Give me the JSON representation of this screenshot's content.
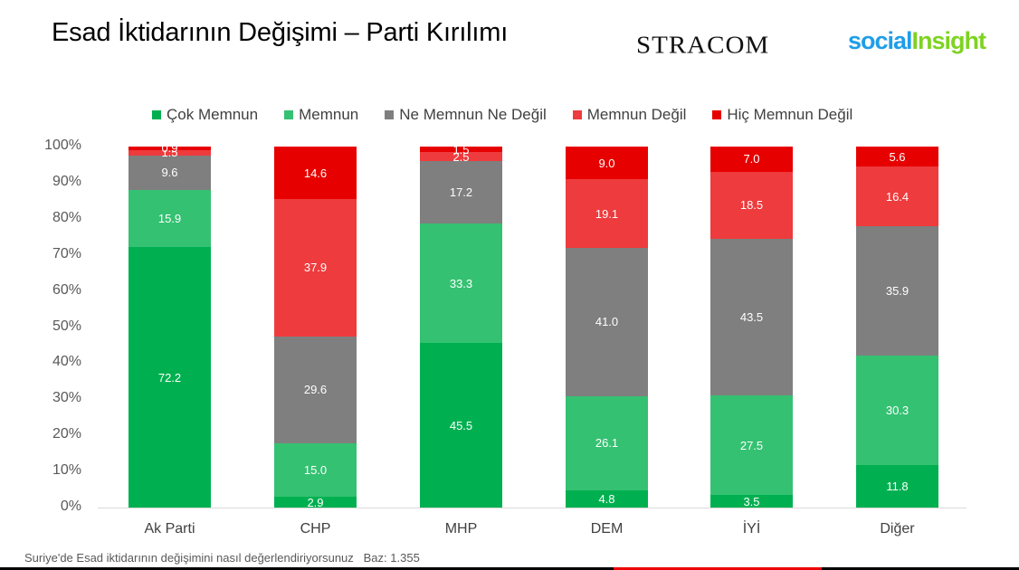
{
  "header": {
    "title": "Esad İktidarının Değişimi – Parti Kırılımı",
    "logo_stracom": "STRACOM",
    "logo_social_part1": "social",
    "logo_social_part2": "Insight"
  },
  "colors": {
    "cok_memnun": "#00B050",
    "memnun": "#35C172",
    "ne_memnun_ne_degil": "#7F7F7F",
    "memnun_degil": "#EE3B3D",
    "hic_memnun_degil": "#E60000"
  },
  "legend": [
    {
      "label": "Çok Memnun",
      "color": "#00B050"
    },
    {
      "label": "Memnun",
      "color": "#35C172"
    },
    {
      "label": "Ne Memnun Ne Değil",
      "color": "#7F7F7F"
    },
    {
      "label": "Memnun Değil",
      "color": "#EE3B3D"
    },
    {
      "label": "Hiç Memnun Değil",
      "color": "#E60000"
    }
  ],
  "yaxis": {
    "ticks": [
      "0%",
      "10%",
      "20%",
      "30%",
      "40%",
      "50%",
      "60%",
      "70%",
      "80%",
      "90%",
      "100%"
    ]
  },
  "footnote": {
    "question": "Suriye'de Esad iktidarının değişimini nasıl değerlendiriyorsunuz",
    "base": "Baz: 1.355"
  },
  "chart_data": {
    "type": "bar",
    "stacked": true,
    "percent_stacked": true,
    "title": "Esad İktidarının Değişimi – Parti Kırılımı",
    "xlabel": "",
    "ylabel": "",
    "ylim": [
      0,
      100
    ],
    "legend_position": "top",
    "grid": false,
    "categories": [
      "Ak Parti",
      "CHP",
      "MHP",
      "DEM",
      "İYİ",
      "Diğer"
    ],
    "series": [
      {
        "name": "Çok Memnun",
        "color": "#00B050",
        "values": [
          72.2,
          2.9,
          45.5,
          4.8,
          3.5,
          11.8
        ]
      },
      {
        "name": "Memnun",
        "color": "#35C172",
        "values": [
          15.9,
          15.0,
          33.3,
          26.1,
          27.5,
          30.3
        ]
      },
      {
        "name": "Ne Memnun Ne Değil",
        "color": "#7F7F7F",
        "values": [
          9.6,
          29.6,
          17.2,
          41.0,
          43.5,
          35.9
        ]
      },
      {
        "name": "Memnun Değil",
        "color": "#EE3B3D",
        "values": [
          1.5,
          37.9,
          2.5,
          19.1,
          18.5,
          16.4
        ]
      },
      {
        "name": "Hiç Memnun Değil",
        "color": "#E60000",
        "values": [
          0.9,
          14.6,
          1.5,
          9.0,
          7.0,
          5.6
        ]
      }
    ],
    "footnote": "Suriye'de Esad iktidarının değişimini nasıl değerlendiriyorsunuz   Baz: 1.355"
  }
}
